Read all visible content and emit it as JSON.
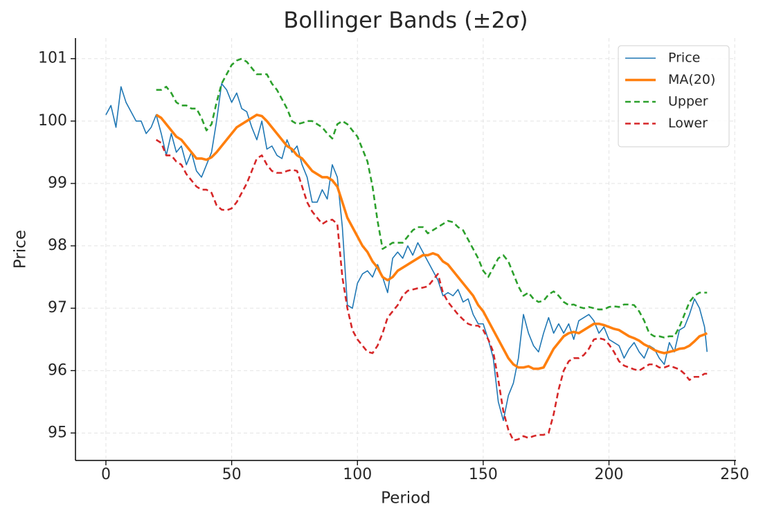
{
  "chart_data": {
    "type": "line",
    "title": "Bollinger Bands (±2σ)",
    "x_label": "Period",
    "y_label": "Price",
    "xlim": [
      -12.1,
      250.5
    ],
    "ylim": [
      94.56,
      101.33
    ],
    "xticks": [
      0,
      50,
      100,
      150,
      200,
      250
    ],
    "yticks": [
      95,
      96,
      97,
      98,
      99,
      100,
      101
    ],
    "grid": true,
    "legend": "upper right",
    "x": [
      0,
      2,
      4,
      6,
      8,
      10,
      12,
      14,
      16,
      18,
      20,
      22,
      24,
      26,
      28,
      30,
      32,
      34,
      36,
      38,
      40,
      42,
      44,
      46,
      48,
      50,
      52,
      54,
      56,
      58,
      60,
      62,
      64,
      66,
      68,
      70,
      72,
      74,
      76,
      78,
      80,
      82,
      84,
      86,
      88,
      90,
      92,
      94,
      96,
      98,
      100,
      102,
      104,
      106,
      108,
      110,
      112,
      114,
      116,
      118,
      120,
      122,
      124,
      126,
      128,
      130,
      132,
      134,
      136,
      138,
      140,
      142,
      144,
      146,
      148,
      150,
      152,
      154,
      156,
      158,
      160,
      162,
      164,
      166,
      168,
      170,
      172,
      174,
      176,
      178,
      180,
      182,
      184,
      186,
      188,
      190,
      192,
      194,
      196,
      198,
      200,
      202,
      204,
      206,
      208,
      210,
      212,
      214,
      216,
      218,
      220,
      222,
      224,
      226,
      228,
      230,
      232,
      234,
      236,
      238,
      239
    ],
    "series": [
      {
        "name": "Price",
        "color": "#1f77b4",
        "linestyle": "solid",
        "values": [
          100.1,
          100.25,
          99.9,
          100.55,
          100.3,
          100.15,
          100.0,
          100.0,
          99.8,
          99.9,
          100.1,
          99.8,
          99.45,
          99.8,
          99.5,
          99.6,
          99.3,
          99.5,
          99.2,
          99.1,
          99.3,
          99.5,
          100.0,
          100.6,
          100.5,
          100.3,
          100.45,
          100.2,
          100.15,
          99.9,
          99.7,
          100.0,
          99.55,
          99.6,
          99.45,
          99.4,
          99.7,
          99.5,
          99.6,
          99.3,
          99.1,
          98.7,
          98.7,
          98.9,
          98.75,
          99.3,
          99.1,
          98.3,
          97.05,
          97.0,
          97.4,
          97.55,
          97.6,
          97.5,
          97.7,
          97.5,
          97.25,
          97.8,
          97.9,
          97.8,
          98.0,
          97.85,
          98.05,
          97.9,
          97.75,
          97.6,
          97.45,
          97.2,
          97.25,
          97.2,
          97.3,
          97.1,
          97.15,
          96.9,
          96.75,
          96.75,
          96.5,
          96.2,
          95.5,
          95.2,
          95.6,
          95.8,
          96.2,
          96.9,
          96.6,
          96.4,
          96.3,
          96.6,
          96.85,
          96.6,
          96.75,
          96.6,
          96.75,
          96.5,
          96.8,
          96.85,
          96.9,
          96.8,
          96.6,
          96.7,
          96.5,
          96.45,
          96.4,
          96.2,
          96.35,
          96.45,
          96.3,
          96.2,
          96.4,
          96.35,
          96.2,
          96.1,
          96.45,
          96.3,
          96.65,
          96.7,
          96.9,
          97.15,
          97.0,
          96.7,
          96.3
        ]
      },
      {
        "name": "MA(20)",
        "color": "#ff7f0e",
        "linestyle": "thick",
        "values": [
          null,
          null,
          null,
          null,
          null,
          null,
          null,
          null,
          null,
          null,
          100.1,
          100.05,
          99.95,
          99.85,
          99.75,
          99.7,
          99.6,
          99.5,
          99.4,
          99.4,
          99.38,
          99.42,
          99.5,
          99.6,
          99.7,
          99.8,
          99.9,
          99.95,
          100.0,
          100.05,
          100.1,
          100.08,
          100.0,
          99.9,
          99.8,
          99.7,
          99.6,
          99.55,
          99.45,
          99.4,
          99.3,
          99.2,
          99.15,
          99.1,
          99.1,
          99.05,
          98.95,
          98.7,
          98.45,
          98.3,
          98.15,
          98.0,
          97.9,
          97.75,
          97.65,
          97.5,
          97.45,
          97.5,
          97.6,
          97.65,
          97.7,
          97.75,
          97.8,
          97.85,
          97.85,
          97.88,
          97.85,
          97.75,
          97.7,
          97.6,
          97.5,
          97.4,
          97.3,
          97.2,
          97.05,
          96.95,
          96.8,
          96.65,
          96.5,
          96.35,
          96.2,
          96.1,
          96.05,
          96.05,
          96.07,
          96.03,
          96.03,
          96.05,
          96.2,
          96.35,
          96.45,
          96.55,
          96.6,
          96.62,
          96.6,
          96.65,
          96.7,
          96.75,
          96.75,
          96.73,
          96.7,
          96.67,
          96.65,
          96.6,
          96.55,
          96.52,
          96.48,
          96.42,
          96.38,
          96.33,
          96.3,
          96.28,
          96.3,
          96.32,
          96.35,
          96.36,
          96.4,
          96.47,
          96.55,
          96.58,
          96.6
        ]
      },
      {
        "name": "Upper",
        "color": "#2ca02c",
        "linestyle": "dashed",
        "values": [
          null,
          null,
          null,
          null,
          null,
          null,
          null,
          null,
          null,
          null,
          100.5,
          100.5,
          100.55,
          100.45,
          100.3,
          100.25,
          100.25,
          100.2,
          100.2,
          100.05,
          99.85,
          99.95,
          100.3,
          100.6,
          100.75,
          100.9,
          100.97,
          101.0,
          100.95,
          100.85,
          100.75,
          100.75,
          100.75,
          100.6,
          100.5,
          100.35,
          100.2,
          100.0,
          99.95,
          99.97,
          100.0,
          100.0,
          99.95,
          99.9,
          99.8,
          99.72,
          99.95,
          100.0,
          99.95,
          99.85,
          99.75,
          99.55,
          99.35,
          98.95,
          98.4,
          97.95,
          98.0,
          98.05,
          98.05,
          98.05,
          98.15,
          98.25,
          98.3,
          98.3,
          98.2,
          98.25,
          98.3,
          98.35,
          98.4,
          98.38,
          98.3,
          98.25,
          98.1,
          97.95,
          97.8,
          97.6,
          97.5,
          97.65,
          97.8,
          97.85,
          97.75,
          97.55,
          97.35,
          97.2,
          97.25,
          97.15,
          97.1,
          97.12,
          97.22,
          97.27,
          97.2,
          97.1,
          97.05,
          97.06,
          97.02,
          97.0,
          97.02,
          97.0,
          96.98,
          96.98,
          97.02,
          97.03,
          97.02,
          97.06,
          97.06,
          97.05,
          96.95,
          96.8,
          96.6,
          96.55,
          96.55,
          96.53,
          96.55,
          96.55,
          96.7,
          96.9,
          97.1,
          97.2,
          97.25,
          97.25,
          97.25
        ]
      },
      {
        "name": "Lower",
        "color": "#d62728",
        "linestyle": "dashed",
        "values": [
          null,
          null,
          null,
          null,
          null,
          null,
          null,
          null,
          null,
          null,
          99.7,
          99.65,
          99.45,
          99.45,
          99.35,
          99.3,
          99.15,
          99.05,
          98.95,
          98.9,
          98.9,
          98.85,
          98.65,
          98.58,
          98.57,
          98.6,
          98.7,
          98.85,
          99.0,
          99.2,
          99.4,
          99.45,
          99.3,
          99.2,
          99.17,
          99.17,
          99.2,
          99.22,
          99.2,
          98.95,
          98.7,
          98.55,
          98.45,
          98.35,
          98.4,
          98.42,
          98.35,
          97.5,
          97.0,
          96.65,
          96.5,
          96.4,
          96.3,
          96.28,
          96.4,
          96.6,
          96.85,
          96.95,
          97.05,
          97.2,
          97.28,
          97.3,
          97.32,
          97.33,
          97.35,
          97.45,
          97.55,
          97.25,
          97.1,
          97.0,
          96.9,
          96.82,
          96.75,
          96.72,
          96.72,
          96.65,
          96.5,
          96.3,
          95.85,
          95.35,
          95.05,
          94.88,
          94.9,
          94.95,
          94.92,
          94.95,
          94.97,
          94.97,
          95.0,
          95.3,
          95.7,
          96.0,
          96.15,
          96.2,
          96.2,
          96.25,
          96.35,
          96.5,
          96.52,
          96.5,
          96.42,
          96.3,
          96.15,
          96.08,
          96.05,
          96.02,
          96.0,
          96.05,
          96.1,
          96.1,
          96.05,
          96.05,
          96.08,
          96.05,
          96.02,
          95.95,
          95.85,
          95.9,
          95.9,
          95.95,
          95.95
        ]
      }
    ]
  }
}
